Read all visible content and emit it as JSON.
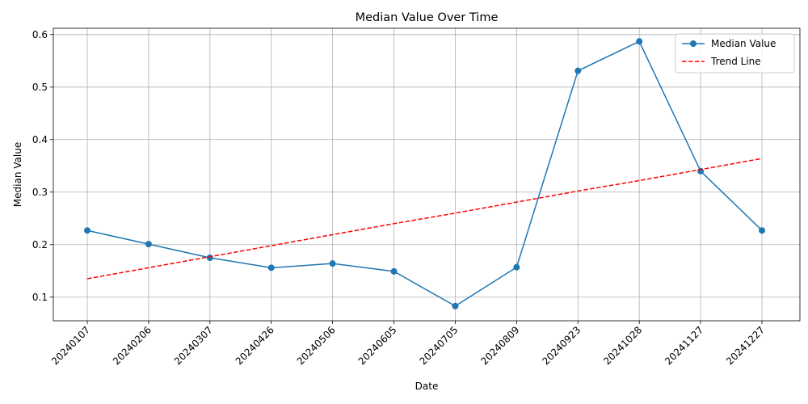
{
  "chart_data": {
    "type": "line",
    "title": "Median Value Over Time",
    "xlabel": "Date",
    "ylabel": "Median Value",
    "categories": [
      "20240107",
      "20240206",
      "20240307",
      "20240426",
      "20240506",
      "20240605",
      "20240705",
      "20240809",
      "20240923",
      "20241028",
      "20241127",
      "20241227"
    ],
    "ylim": [
      0.055,
      0.612
    ],
    "yticks": [
      0.1,
      0.2,
      0.3,
      0.4,
      0.5,
      0.6
    ],
    "ytick_labels": [
      "0.1",
      "0.2",
      "0.3",
      "0.4",
      "0.5",
      "0.6"
    ],
    "grid": true,
    "legend_position": "top-right",
    "x_tick_rotation": 45,
    "series": [
      {
        "name": "Median Value",
        "style": "solid-with-circle-markers",
        "color": "#1f77b4",
        "values": [
          0.227,
          0.201,
          0.175,
          0.156,
          0.164,
          0.149,
          0.083,
          0.157,
          0.531,
          0.587,
          0.34,
          0.227
        ]
      },
      {
        "name": "Trend Line",
        "style": "dashed",
        "color": "#ff0000",
        "values": [
          0.135,
          0.156,
          0.177,
          0.198,
          0.219,
          0.24,
          0.26,
          0.281,
          0.302,
          0.322,
          0.343,
          0.364
        ]
      }
    ]
  }
}
